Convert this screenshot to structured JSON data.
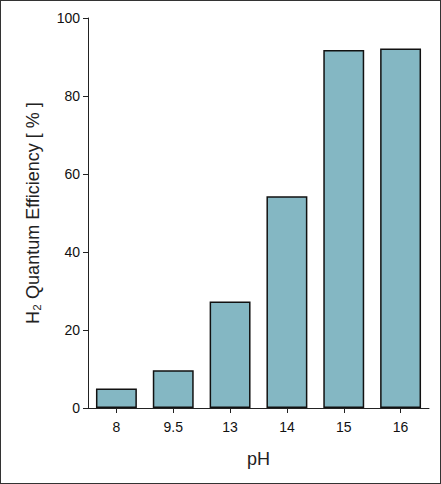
{
  "chart_data": {
    "type": "bar",
    "x_label": "pH",
    "y_label": "H₂ Quantum Efficiency [ % ]",
    "categories": [
      "8",
      "9.5",
      "13",
      "14",
      "15",
      "16"
    ],
    "values": [
      5,
      9.7,
      27.3,
      54.3,
      91.8,
      92.2
    ],
    "color": "#84b7c3",
    "ylim": [
      0,
      100
    ],
    "yticks": [
      0,
      20,
      40,
      60,
      80,
      100
    ],
    "grid": false
  }
}
